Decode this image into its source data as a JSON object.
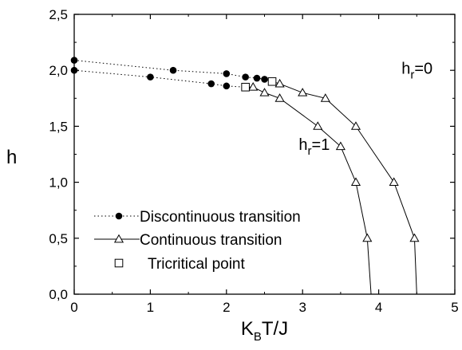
{
  "chart_data": {
    "type": "line",
    "xlabel": {
      "main": "K",
      "sub": "B",
      "rest": "T/J"
    },
    "ylabel": "h",
    "xlim": [
      0,
      5
    ],
    "ylim": [
      0,
      2.5
    ],
    "xticks": [
      0,
      1,
      2,
      3,
      4,
      5
    ],
    "xtick_labels": [
      "0",
      "1",
      "2",
      "3",
      "4",
      "5"
    ],
    "yticks": [
      0,
      0.5,
      1,
      1.5,
      2,
      2.5
    ],
    "ytick_labels": [
      "0,0",
      "0,5",
      "1,0",
      "1,5",
      "2,0",
      "2,5"
    ],
    "grid": false,
    "legend_position": "bottom-left",
    "legend": [
      {
        "label": "Discontinuous transition",
        "style": "dotted-filled-circle"
      },
      {
        "label": "Continuous transition",
        "style": "solid-open-triangle"
      },
      {
        "label": "Tricritical point",
        "style": "open-square"
      }
    ],
    "series": [
      {
        "group": "hr=0",
        "kind": "discontinuous",
        "x": [
          0,
          1.3,
          2.0,
          2.25,
          2.4,
          2.5,
          2.6
        ],
        "y": [
          2.09,
          2.0,
          1.97,
          1.94,
          1.93,
          1.92,
          1.9
        ]
      },
      {
        "group": "hr=0",
        "kind": "continuous",
        "x": [
          2.6,
          2.7,
          3.0,
          3.3,
          3.7,
          4.2,
          4.47,
          4.5
        ],
        "y": [
          1.9,
          1.88,
          1.8,
          1.75,
          1.5,
          1.0,
          0.5,
          0.0
        ]
      },
      {
        "group": "hr=1",
        "kind": "discontinuous",
        "x": [
          0,
          1.0,
          1.8,
          2.0,
          2.25
        ],
        "y": [
          2.0,
          1.94,
          1.88,
          1.86,
          1.85
        ]
      },
      {
        "group": "hr=1",
        "kind": "continuous",
        "x": [
          2.25,
          2.35,
          2.5,
          2.7,
          3.2,
          3.5,
          3.7,
          3.85,
          3.9
        ],
        "y": [
          1.85,
          1.85,
          1.8,
          1.75,
          1.5,
          1.32,
          1.0,
          0.5,
          0.0
        ]
      }
    ],
    "tricritical_points": [
      {
        "group": "hr=0",
        "x": 2.6,
        "y": 1.9
      },
      {
        "group": "hr=1",
        "x": 2.25,
        "y": 1.85
      }
    ],
    "annotations": [
      {
        "main": "h",
        "sub": "r",
        "rest": "=0",
        "x": 4.3,
        "y": 1.97
      },
      {
        "main": "h",
        "sub": "r",
        "rest": "=1",
        "x": 2.95,
        "y": 1.29
      }
    ]
  }
}
